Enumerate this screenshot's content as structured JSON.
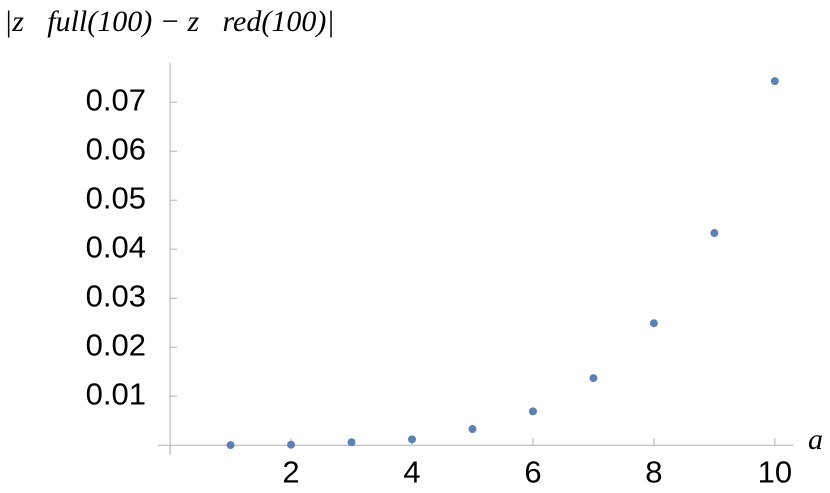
{
  "chart_data": {
    "type": "scatter",
    "ylabel": "|z⃗full(100) − z⃗red(100)|",
    "xlabel": "a",
    "x": [
      1,
      2,
      3,
      4,
      5,
      6,
      7,
      8,
      9,
      10
    ],
    "series": [
      {
        "color": "#5e81b5",
        "values": [
          2e-05,
          0.0001,
          0.0006,
          0.0012,
          0.0033,
          0.0069,
          0.0137,
          0.0249,
          0.0433,
          0.0743
        ]
      }
    ],
    "xlim": [
      -0.2,
      10.3
    ],
    "ylim": [
      -0.002,
      0.078
    ],
    "xticks": [
      2,
      4,
      6,
      8,
      10
    ],
    "yticks": [
      0.01,
      0.02,
      0.03,
      0.04,
      0.05,
      0.06,
      0.07
    ],
    "grid": false
  }
}
